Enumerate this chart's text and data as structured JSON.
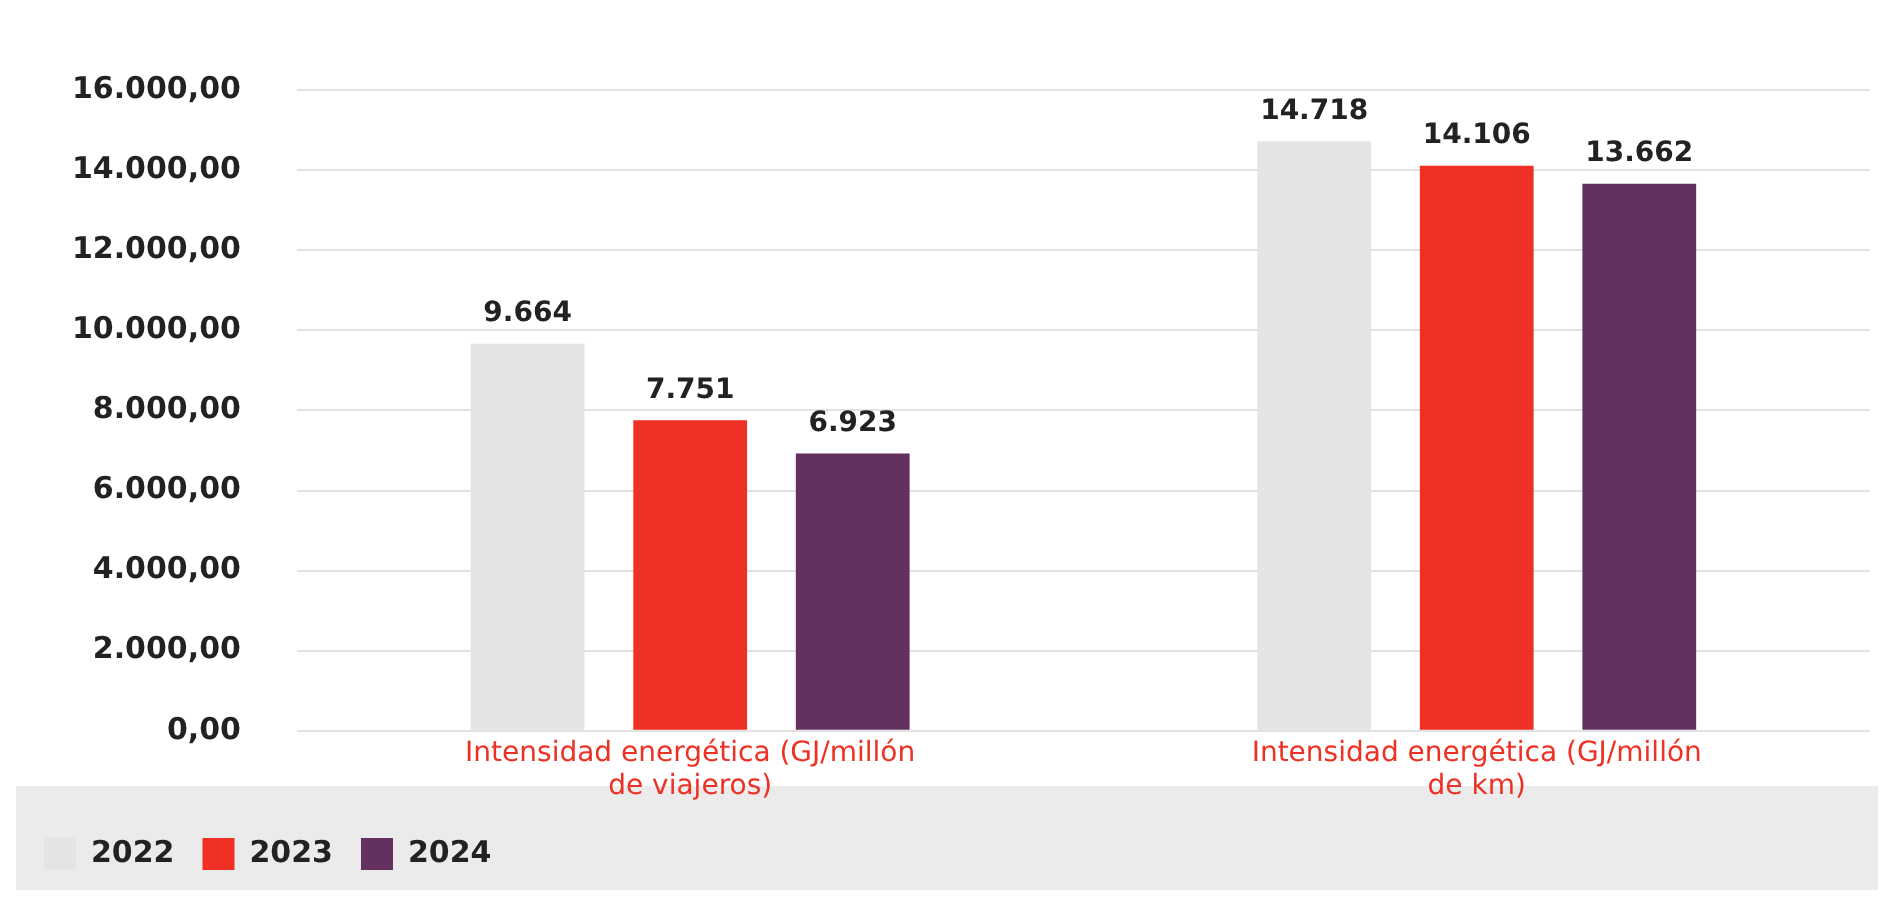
{
  "chart_data": {
    "type": "bar",
    "categories": [
      "Intensidad energética (GJ/millón de viajeros)",
      "Intensidad energética (GJ/millón de km)"
    ],
    "series": [
      {
        "name": "2022",
        "color": "#e4e4e4",
        "values": [
          9664,
          14718
        ],
        "value_labels": [
          "9.664",
          "14.718"
        ]
      },
      {
        "name": "2023",
        "color": "#ee3124",
        "values": [
          7751,
          14106
        ],
        "value_labels": [
          "7.751",
          "14.106"
        ]
      },
      {
        "name": "2024",
        "color": "#63305f",
        "values": [
          6923,
          13662
        ],
        "value_labels": [
          "6.923",
          "13.662"
        ]
      }
    ],
    "ylim": [
      0,
      16000
    ],
    "yticks": [
      {
        "value": 0,
        "label": "0,00"
      },
      {
        "value": 2000,
        "label": "2.000,00"
      },
      {
        "value": 4000,
        "label": "4.000,00"
      },
      {
        "value": 6000,
        "label": "6.000,00"
      },
      {
        "value": 8000,
        "label": "8.000,00"
      },
      {
        "value": 10000,
        "label": "10.000,00"
      },
      {
        "value": 12000,
        "label": "12.000,00"
      },
      {
        "value": 14000,
        "label": "14.000,00"
      },
      {
        "value": 16000,
        "label": "16.000,00"
      }
    ],
    "grid": "y",
    "legend": "bottom"
  }
}
